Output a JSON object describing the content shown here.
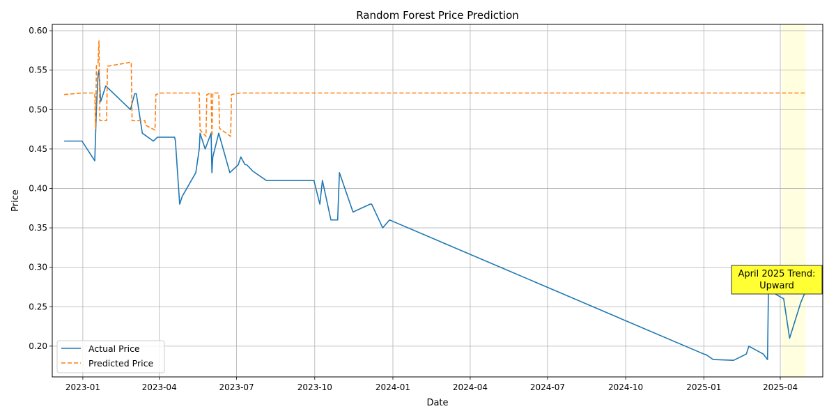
{
  "chart_data": {
    "type": "line",
    "title": "Random Forest Price Prediction",
    "xlabel": "Date",
    "ylabel": "Price",
    "xlim": [
      "2022-11-26",
      "2025-05-21"
    ],
    "ylim": [
      0.161,
      0.608
    ],
    "x_ticks": [
      "2023-01",
      "2023-04",
      "2023-07",
      "2023-10",
      "2024-01",
      "2024-04",
      "2024-07",
      "2024-10",
      "2025-01",
      "2025-04"
    ],
    "y_ticks": [
      "0.20",
      "0.25",
      "0.30",
      "0.35",
      "0.40",
      "0.45",
      "0.50",
      "0.55",
      "0.60"
    ],
    "grid": true,
    "legend_position": "lower-left",
    "highlight_span": [
      "2025-04-03",
      "2025-05-01"
    ],
    "highlight_color": "#ffffe0",
    "annotation": {
      "lines": [
        "April 2025 Trend:",
        "Upward"
      ],
      "box_color": "#ffff33"
    },
    "series": [
      {
        "name": "Actual Price",
        "color": "#1f77b4",
        "style": "solid",
        "points": [
          [
            "2022-12-10",
            0.46
          ],
          [
            "2022-12-31",
            0.46
          ],
          [
            "2023-01-15",
            0.435
          ],
          [
            "2023-01-17",
            0.5
          ],
          [
            "2023-01-19",
            0.545
          ],
          [
            "2023-01-20",
            0.55
          ],
          [
            "2023-01-22",
            0.51
          ],
          [
            "2023-01-25",
            0.52
          ],
          [
            "2023-01-28",
            0.53
          ],
          [
            "2023-02-26",
            0.5
          ],
          [
            "2023-03-03",
            0.52
          ],
          [
            "2023-03-05",
            0.52
          ],
          [
            "2023-03-12",
            0.47
          ],
          [
            "2023-03-25",
            0.46
          ],
          [
            "2023-03-30",
            0.465
          ],
          [
            "2023-04-19",
            0.465
          ],
          [
            "2023-04-20",
            0.46
          ],
          [
            "2023-04-25",
            0.38
          ],
          [
            "2023-04-28",
            0.39
          ],
          [
            "2023-05-14",
            0.42
          ],
          [
            "2023-05-18",
            0.45
          ],
          [
            "2023-05-19",
            0.47
          ],
          [
            "2023-05-25",
            0.45
          ],
          [
            "2023-06-01",
            0.47
          ],
          [
            "2023-06-02",
            0.42
          ],
          [
            "2023-06-03",
            0.44
          ],
          [
            "2023-06-10",
            0.47
          ],
          [
            "2023-06-23",
            0.42
          ],
          [
            "2023-07-03",
            0.43
          ],
          [
            "2023-07-06",
            0.44
          ],
          [
            "2023-07-11",
            0.43
          ],
          [
            "2023-07-13",
            0.43
          ],
          [
            "2023-07-20",
            0.422
          ],
          [
            "2023-08-05",
            0.41
          ],
          [
            "2023-09-30",
            0.41
          ],
          [
            "2023-10-07",
            0.38
          ],
          [
            "2023-10-10",
            0.41
          ],
          [
            "2023-10-20",
            0.36
          ],
          [
            "2023-10-28",
            0.36
          ],
          [
            "2023-10-30",
            0.42
          ],
          [
            "2023-11-15",
            0.37
          ],
          [
            "2023-12-05",
            0.38
          ],
          [
            "2023-12-07",
            0.38
          ],
          [
            "2023-12-20",
            0.35
          ],
          [
            "2023-12-28",
            0.36
          ],
          [
            "2025-01-01",
            0.19
          ],
          [
            "2025-01-04",
            0.189
          ],
          [
            "2025-01-12",
            0.183
          ],
          [
            "2025-02-05",
            0.182
          ],
          [
            "2025-02-20",
            0.19
          ],
          [
            "2025-02-23",
            0.2
          ],
          [
            "2025-03-12",
            0.19
          ],
          [
            "2025-03-17",
            0.183
          ],
          [
            "2025-03-18",
            0.27
          ],
          [
            "2025-03-20",
            0.27
          ],
          [
            "2025-04-05",
            0.26
          ],
          [
            "2025-04-12",
            0.21
          ],
          [
            "2025-04-25",
            0.255
          ],
          [
            "2025-05-01",
            0.27
          ]
        ]
      },
      {
        "name": "Predicted Price",
        "color": "#ff7f0e",
        "style": "dashed",
        "points": [
          [
            "2022-12-10",
            0.519
          ],
          [
            "2022-12-31",
            0.521
          ],
          [
            "2023-01-15",
            0.521
          ],
          [
            "2023-01-16",
            0.476
          ],
          [
            "2023-01-17",
            0.555
          ],
          [
            "2023-01-19",
            0.56
          ],
          [
            "2023-01-20",
            0.587
          ],
          [
            "2023-01-21",
            0.486
          ],
          [
            "2023-01-29",
            0.486
          ],
          [
            "2023-01-30",
            0.555
          ],
          [
            "2023-02-27",
            0.56
          ],
          [
            "2023-02-28",
            0.486
          ],
          [
            "2023-03-15",
            0.486
          ],
          [
            "2023-03-16",
            0.48
          ],
          [
            "2023-03-27",
            0.474
          ],
          [
            "2023-03-28",
            0.519
          ],
          [
            "2023-04-03",
            0.521
          ],
          [
            "2023-05-18",
            0.521
          ],
          [
            "2023-05-19",
            0.474
          ],
          [
            "2023-05-26",
            0.466
          ],
          [
            "2023-05-27",
            0.519
          ],
          [
            "2023-06-01",
            0.521
          ],
          [
            "2023-06-02",
            0.466
          ],
          [
            "2023-06-03",
            0.521
          ],
          [
            "2023-06-10",
            0.521
          ],
          [
            "2023-06-11",
            0.476
          ],
          [
            "2023-06-24",
            0.466
          ],
          [
            "2023-06-25",
            0.519
          ],
          [
            "2023-07-05",
            0.521
          ],
          [
            "2025-05-01",
            0.521
          ]
        ]
      }
    ]
  }
}
